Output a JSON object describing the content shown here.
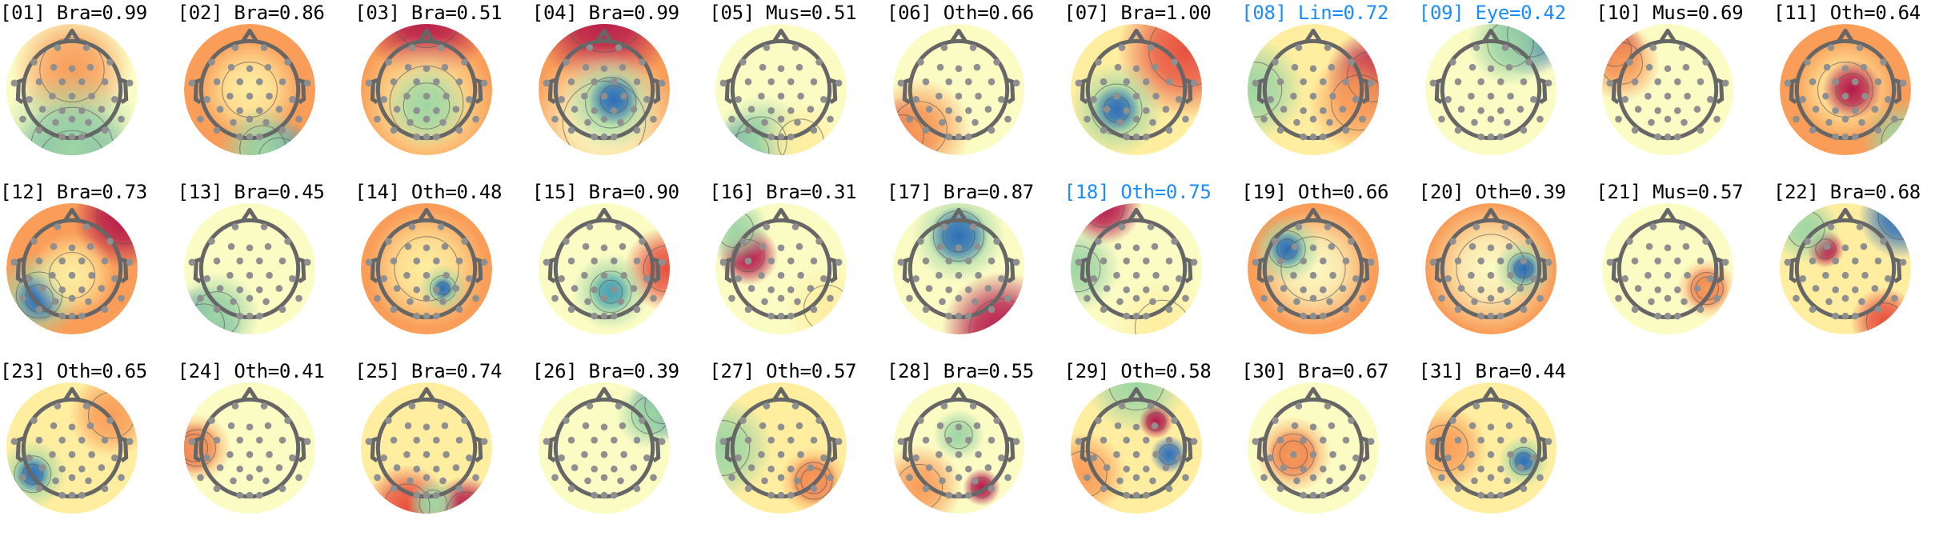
{
  "chart_data": {
    "type": "heatmap",
    "title": "",
    "colormap": "Spectral_r",
    "highlight_color": "#1a8cff",
    "components": [
      {
        "label": "[01] Bra=0.99",
        "index": 1,
        "class": "Bra",
        "score": 0.99,
        "highlighted": false
      },
      {
        "label": "[02] Bra=0.86",
        "index": 2,
        "class": "Bra",
        "score": 0.86,
        "highlighted": false
      },
      {
        "label": "[03] Bra=0.51",
        "index": 3,
        "class": "Bra",
        "score": 0.51,
        "highlighted": false
      },
      {
        "label": "[04] Bra=0.99",
        "index": 4,
        "class": "Bra",
        "score": 0.99,
        "highlighted": false
      },
      {
        "label": "[05] Mus=0.51",
        "index": 5,
        "class": "Mus",
        "score": 0.51,
        "highlighted": false
      },
      {
        "label": "[06] Oth=0.66",
        "index": 6,
        "class": "Oth",
        "score": 0.66,
        "highlighted": false
      },
      {
        "label": "[07] Bra=1.00",
        "index": 7,
        "class": "Bra",
        "score": 1.0,
        "highlighted": false
      },
      {
        "label": "[08] Lin=0.72",
        "index": 8,
        "class": "Lin",
        "score": 0.72,
        "highlighted": true
      },
      {
        "label": "[09] Eye=0.42",
        "index": 9,
        "class": "Eye",
        "score": 0.42,
        "highlighted": true
      },
      {
        "label": "[10] Mus=0.69",
        "index": 10,
        "class": "Mus",
        "score": 0.69,
        "highlighted": false
      },
      {
        "label": "[11] Oth=0.64",
        "index": 11,
        "class": "Oth",
        "score": 0.64,
        "highlighted": false
      },
      {
        "label": "[12] Bra=0.73",
        "index": 12,
        "class": "Bra",
        "score": 0.73,
        "highlighted": false
      },
      {
        "label": "[13] Bra=0.45",
        "index": 13,
        "class": "Bra",
        "score": 0.45,
        "highlighted": false
      },
      {
        "label": "[14] Oth=0.48",
        "index": 14,
        "class": "Oth",
        "score": 0.48,
        "highlighted": false
      },
      {
        "label": "[15] Bra=0.90",
        "index": 15,
        "class": "Bra",
        "score": 0.9,
        "highlighted": false
      },
      {
        "label": "[16] Bra=0.31",
        "index": 16,
        "class": "Bra",
        "score": 0.31,
        "highlighted": false
      },
      {
        "label": "[17] Bra=0.87",
        "index": 17,
        "class": "Bra",
        "score": 0.87,
        "highlighted": false
      },
      {
        "label": "[18] Oth=0.75",
        "index": 18,
        "class": "Oth",
        "score": 0.75,
        "highlighted": true
      },
      {
        "label": "[19] Oth=0.66",
        "index": 19,
        "class": "Oth",
        "score": 0.66,
        "highlighted": false
      },
      {
        "label": "[20] Oth=0.39",
        "index": 20,
        "class": "Oth",
        "score": 0.39,
        "highlighted": false
      },
      {
        "label": "[21] Mus=0.57",
        "index": 21,
        "class": "Mus",
        "score": 0.57,
        "highlighted": false
      },
      {
        "label": "[22] Bra=0.68",
        "index": 22,
        "class": "Bra",
        "score": 0.68,
        "highlighted": false
      },
      {
        "label": "[23] Oth=0.65",
        "index": 23,
        "class": "Oth",
        "score": 0.65,
        "highlighted": false
      },
      {
        "label": "[24] Oth=0.41",
        "index": 24,
        "class": "Oth",
        "score": 0.41,
        "highlighted": false
      },
      {
        "label": "[25] Bra=0.74",
        "index": 25,
        "class": "Bra",
        "score": 0.74,
        "highlighted": false
      },
      {
        "label": "[26] Bra=0.39",
        "index": 26,
        "class": "Bra",
        "score": 0.39,
        "highlighted": false
      },
      {
        "label": "[27] Oth=0.57",
        "index": 27,
        "class": "Oth",
        "score": 0.57,
        "highlighted": false
      },
      {
        "label": "[28] Bra=0.55",
        "index": 28,
        "class": "Bra",
        "score": 0.55,
        "highlighted": false
      },
      {
        "label": "[29] Oth=0.58",
        "index": 29,
        "class": "Oth",
        "score": 0.58,
        "highlighted": false
      },
      {
        "label": "[30] Bra=0.67",
        "index": 30,
        "class": "Bra",
        "score": 0.67,
        "highlighted": false
      },
      {
        "label": "[31] Bra=0.44",
        "index": 31,
        "class": "Bra",
        "score": 0.44,
        "highlighted": false
      }
    ]
  }
}
